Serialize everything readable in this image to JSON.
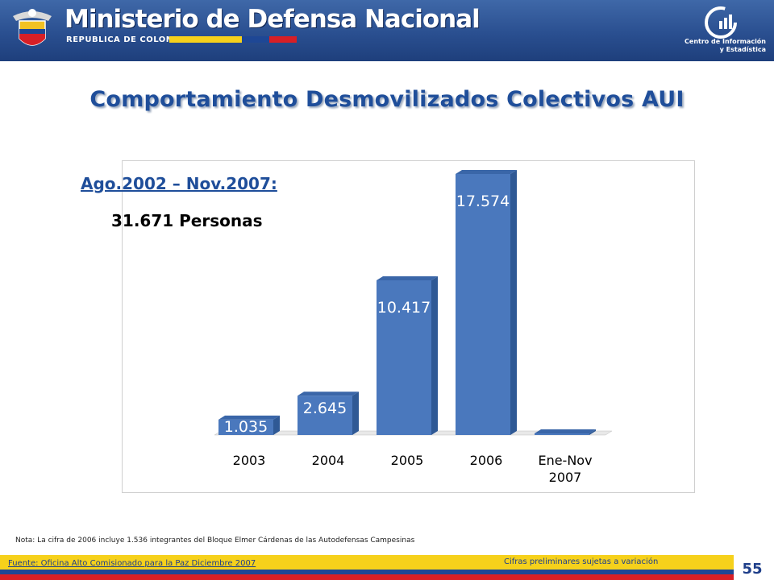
{
  "header": {
    "brand": "Ministerio de Defensa Nacional",
    "brand_sub": "REPUBLICA DE COLOMBIA",
    "centro_line1": "Centro de Información",
    "centro_line2": "y Estadística",
    "flag_colors": [
      "#f6d11b",
      "#1e4795",
      "#d71f26"
    ]
  },
  "title": "Comportamiento Desmovilizados Colectivos AUI",
  "summary": {
    "period": "Ago.2002 – Nov.2007:",
    "total": "31.671 Personas"
  },
  "chart_data": {
    "type": "bar",
    "categories": [
      "2003",
      "2004",
      "2005",
      "2006",
      "Ene-Nov 2007"
    ],
    "values": [
      1035,
      2645,
      10417,
      17574,
      0
    ],
    "data_labels": [
      "1.035",
      "2.645",
      "10.417",
      "17.574",
      ""
    ],
    "bar_color": "#4a78bd",
    "bar_side_color": "#2f5995",
    "bar_top_color": "#3a66a8",
    "grid": false,
    "legend": "none"
  },
  "note": "Nota: La cifra de 2006 incluye 1.536 integrantes del Bloque Elmer Cárdenas de las Autodefensas Campesinas",
  "footer": {
    "fuente": "Fuente: Oficina Alto Comisionado para la Paz Diciembre 2007",
    "cifras": "Cifras preliminares sujetas a variación",
    "page_number": "55"
  }
}
